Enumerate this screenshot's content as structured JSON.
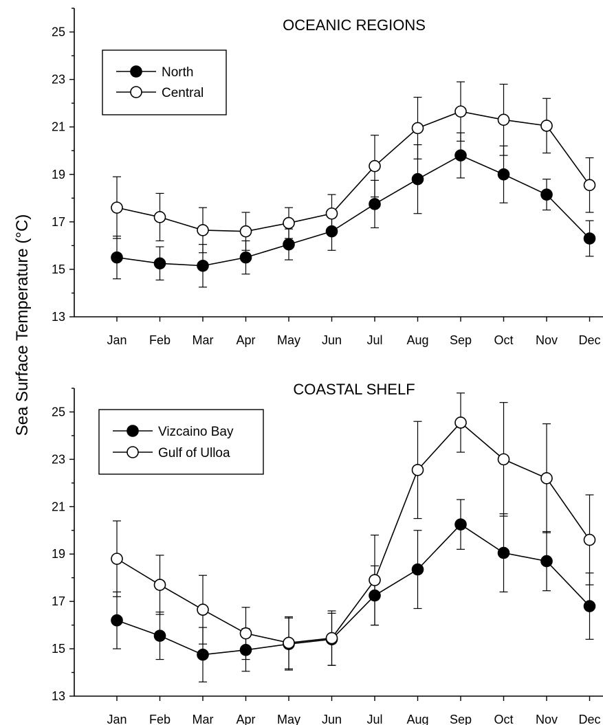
{
  "figure": {
    "ylabel": "Sea Surface Temperature (°C)"
  },
  "chart_data": [
    {
      "type": "line",
      "title": "OCEANIC REGIONS",
      "xlabel": "",
      "ylabel": "Sea Surface Temperature (°C)",
      "categories": [
        "Jan",
        "Feb",
        "Mar",
        "Apr",
        "May",
        "Jun",
        "Jul",
        "Aug",
        "Sep",
        "Oct",
        "Nov",
        "Dec"
      ],
      "ylim": [
        13,
        26
      ],
      "yticks": [
        13,
        15,
        17,
        19,
        21,
        23,
        25
      ],
      "legend_position": "top-left",
      "series": [
        {
          "name": "North",
          "marker": "filled-circle",
          "color": "#000000",
          "values": [
            15.5,
            15.25,
            15.15,
            15.5,
            16.05,
            16.6,
            17.75,
            18.8,
            19.8,
            19.0,
            18.15,
            16.3
          ],
          "error": [
            0.9,
            0.7,
            0.9,
            0.7,
            0.65,
            0.8,
            1.0,
            1.45,
            0.95,
            1.2,
            0.65,
            0.75
          ]
        },
        {
          "name": "Central",
          "marker": "open-circle",
          "color": "#000000",
          "values": [
            17.6,
            17.2,
            16.65,
            16.6,
            16.95,
            17.35,
            19.35,
            20.95,
            21.65,
            21.3,
            21.05,
            18.55
          ],
          "error": [
            1.3,
            1.0,
            0.95,
            0.8,
            0.65,
            0.8,
            1.3,
            1.3,
            1.25,
            1.5,
            1.15,
            1.15
          ]
        }
      ]
    },
    {
      "type": "line",
      "title": "COASTAL SHELF",
      "xlabel": "",
      "ylabel": "Sea Surface Temperature (°C)",
      "categories": [
        "Jan",
        "Feb",
        "Mar",
        "Apr",
        "May",
        "Jun",
        "Jul",
        "Aug",
        "Sep",
        "Oct",
        "Nov",
        "Dec"
      ],
      "ylim": [
        13,
        26
      ],
      "yticks": [
        13,
        15,
        17,
        19,
        21,
        23,
        25
      ],
      "legend_position": "top-left",
      "series": [
        {
          "name": "Vizcaino Bay",
          "marker": "filled-circle",
          "color": "#000000",
          "values": [
            16.2,
            15.55,
            14.75,
            14.95,
            15.2,
            15.4,
            17.25,
            18.35,
            20.25,
            19.05,
            18.7,
            16.8
          ],
          "error": [
            1.2,
            1.0,
            1.15,
            0.9,
            1.1,
            1.1,
            1.25,
            1.65,
            1.05,
            1.65,
            1.25,
            1.4
          ]
        },
        {
          "name": "Gulf of Ulloa",
          "marker": "open-circle",
          "color": "#000000",
          "values": [
            18.8,
            17.7,
            16.65,
            15.65,
            15.25,
            15.45,
            17.9,
            22.55,
            24.55,
            23.0,
            22.2,
            19.6
          ],
          "error": [
            1.6,
            1.25,
            1.45,
            1.1,
            1.1,
            1.15,
            1.9,
            2.05,
            1.25,
            2.4,
            2.3,
            1.9
          ]
        }
      ]
    }
  ]
}
